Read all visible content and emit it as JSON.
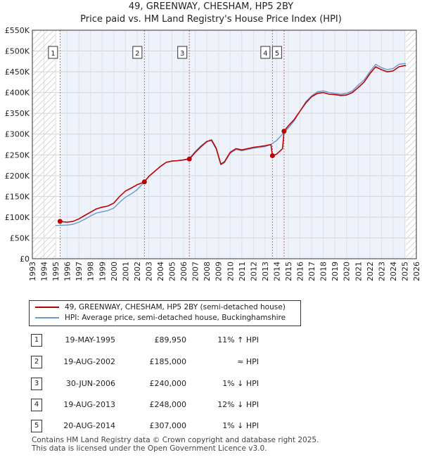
{
  "title": "49, GREENWAY, CHESHAM, HP5 2BY",
  "subtitle": "Price paid vs. HM Land Registry's House Price Index (HPI)",
  "chart_data": {
    "type": "line",
    "title": "49, GREENWAY, CHESHAM, HP5 2BY",
    "subtitle": "Price paid vs. HM Land Registry's House Price Index (HPI)",
    "xlim": [
      1993,
      2026
    ],
    "ylim": [
      0,
      550000
    ],
    "x_ticks": [
      "1993",
      "1994",
      "1995",
      "1996",
      "1997",
      "1998",
      "1999",
      "2000",
      "2001",
      "2002",
      "2003",
      "2004",
      "2005",
      "2006",
      "2007",
      "2008",
      "2009",
      "2010",
      "2011",
      "2012",
      "2013",
      "2014",
      "2015",
      "2016",
      "2017",
      "2018",
      "2019",
      "2020",
      "2021",
      "2022",
      "2023",
      "2024",
      "2025",
      "2026"
    ],
    "y_ticks": [
      {
        "value": 0,
        "label": "£0"
      },
      {
        "value": 50000,
        "label": "£50K"
      },
      {
        "value": 100000,
        "label": "£100K"
      },
      {
        "value": 150000,
        "label": "£150K"
      },
      {
        "value": 200000,
        "label": "£200K"
      },
      {
        "value": 250000,
        "label": "£250K"
      },
      {
        "value": 300000,
        "label": "£300K"
      },
      {
        "value": 350000,
        "label": "£350K"
      },
      {
        "value": 400000,
        "label": "£400K"
      },
      {
        "value": 450000,
        "label": "£450K"
      },
      {
        "value": 500000,
        "label": "£500K"
      },
      {
        "value": 550000,
        "label": "£550K"
      }
    ],
    "grid": true,
    "hatched_ranges": [
      [
        1993,
        1995.0
      ],
      [
        2025.1,
        2026
      ]
    ],
    "shaded_band": [
      1995.38,
      2025.1
    ],
    "series": [
      {
        "name": "49, GREENWAY, CHESHAM, HP5 2BY (semi-detached house)",
        "color": "#c00000",
        "points": [
          [
            1995.38,
            89950
          ],
          [
            1995.6,
            89000
          ],
          [
            1996.0,
            88000
          ],
          [
            1996.5,
            90000
          ],
          [
            1997.0,
            96000
          ],
          [
            1997.5,
            104000
          ],
          [
            1998.0,
            112000
          ],
          [
            1998.5,
            120000
          ],
          [
            1999.0,
            124000
          ],
          [
            1999.5,
            127000
          ],
          [
            2000.0,
            134000
          ],
          [
            2000.5,
            150000
          ],
          [
            2001.0,
            163000
          ],
          [
            2001.5,
            170000
          ],
          [
            2002.0,
            178000
          ],
          [
            2002.63,
            185000
          ],
          [
            2003.0,
            198000
          ],
          [
            2003.5,
            210000
          ],
          [
            2004.0,
            222000
          ],
          [
            2004.5,
            232000
          ],
          [
            2005.0,
            235000
          ],
          [
            2005.5,
            236000
          ],
          [
            2006.0,
            238000
          ],
          [
            2006.5,
            240000
          ],
          [
            2007.0,
            256000
          ],
          [
            2007.5,
            270000
          ],
          [
            2008.0,
            282000
          ],
          [
            2008.4,
            286000
          ],
          [
            2008.8,
            266000
          ],
          [
            2009.2,
            228000
          ],
          [
            2009.5,
            233000
          ],
          [
            2010.0,
            256000
          ],
          [
            2010.5,
            265000
          ],
          [
            2011.0,
            262000
          ],
          [
            2011.5,
            265000
          ],
          [
            2012.0,
            268000
          ],
          [
            2012.5,
            270000
          ],
          [
            2013.0,
            272000
          ],
          [
            2013.5,
            275000
          ],
          [
            2013.63,
            248000
          ],
          [
            2014.0,
            252000
          ],
          [
            2014.5,
            265000
          ],
          [
            2014.63,
            307000
          ],
          [
            2015.0,
            320000
          ],
          [
            2015.5,
            335000
          ],
          [
            2016.0,
            355000
          ],
          [
            2016.5,
            375000
          ],
          [
            2017.0,
            390000
          ],
          [
            2017.5,
            398000
          ],
          [
            2018.0,
            400000
          ],
          [
            2018.5,
            396000
          ],
          [
            2019.0,
            395000
          ],
          [
            2019.5,
            393000
          ],
          [
            2020.0,
            394000
          ],
          [
            2020.5,
            400000
          ],
          [
            2021.0,
            412000
          ],
          [
            2021.5,
            425000
          ],
          [
            2022.0,
            445000
          ],
          [
            2022.5,
            462000
          ],
          [
            2023.0,
            455000
          ],
          [
            2023.5,
            450000
          ],
          [
            2024.0,
            452000
          ],
          [
            2024.5,
            462000
          ],
          [
            2025.0,
            465000
          ],
          [
            2025.1,
            464000
          ]
        ]
      },
      {
        "name": "HPI: Average price, semi-detached house, Buckinghamshire",
        "color": "#6699cc",
        "points": [
          [
            1995.0,
            80000
          ],
          [
            1995.5,
            80500
          ],
          [
            1996.0,
            81000
          ],
          [
            1996.5,
            83000
          ],
          [
            1997.0,
            88000
          ],
          [
            1997.5,
            95000
          ],
          [
            1998.0,
            103000
          ],
          [
            1998.5,
            110000
          ],
          [
            1999.0,
            113000
          ],
          [
            1999.5,
            116000
          ],
          [
            2000.0,
            122000
          ],
          [
            2000.5,
            136000
          ],
          [
            2001.0,
            148000
          ],
          [
            2001.5,
            156000
          ],
          [
            2002.0,
            166000
          ],
          [
            2002.63,
            185000
          ],
          [
            2003.0,
            198000
          ],
          [
            2003.5,
            210000
          ],
          [
            2004.0,
            222000
          ],
          [
            2004.5,
            232000
          ],
          [
            2005.0,
            235000
          ],
          [
            2005.5,
            236000
          ],
          [
            2006.0,
            238000
          ],
          [
            2006.5,
            242000
          ],
          [
            2007.0,
            258000
          ],
          [
            2007.5,
            272000
          ],
          [
            2008.0,
            283000
          ],
          [
            2008.4,
            284000
          ],
          [
            2008.8,
            264000
          ],
          [
            2009.2,
            226000
          ],
          [
            2009.5,
            231000
          ],
          [
            2010.0,
            254000
          ],
          [
            2010.5,
            263000
          ],
          [
            2011.0,
            260000
          ],
          [
            2011.5,
            263000
          ],
          [
            2012.0,
            266000
          ],
          [
            2012.5,
            268000
          ],
          [
            2013.0,
            270000
          ],
          [
            2013.5,
            275000
          ],
          [
            2014.0,
            285000
          ],
          [
            2014.5,
            300000
          ],
          [
            2015.0,
            315000
          ],
          [
            2015.5,
            332000
          ],
          [
            2016.0,
            355000
          ],
          [
            2016.5,
            378000
          ],
          [
            2017.0,
            392000
          ],
          [
            2017.5,
            402000
          ],
          [
            2018.0,
            404000
          ],
          [
            2018.5,
            400000
          ],
          [
            2019.0,
            398000
          ],
          [
            2019.5,
            396000
          ],
          [
            2020.0,
            398000
          ],
          [
            2020.5,
            404000
          ],
          [
            2021.0,
            418000
          ],
          [
            2021.5,
            430000
          ],
          [
            2022.0,
            450000
          ],
          [
            2022.5,
            468000
          ],
          [
            2023.0,
            460000
          ],
          [
            2023.5,
            455000
          ],
          [
            2024.0,
            458000
          ],
          [
            2024.5,
            468000
          ],
          [
            2025.0,
            470000
          ],
          [
            2025.1,
            469000
          ]
        ]
      }
    ],
    "sales": [
      {
        "label": "1",
        "x": 1995.38,
        "y": 89950
      },
      {
        "label": "2",
        "x": 2002.63,
        "y": 185000
      },
      {
        "label": "3",
        "x": 2006.49,
        "y": 240000
      },
      {
        "label": "4",
        "x": 2013.63,
        "y": 248000
      },
      {
        "label": "5",
        "x": 2014.63,
        "y": 307000
      }
    ]
  },
  "legend": {
    "property_label": "49, GREENWAY, CHESHAM, HP5 2BY (semi-detached house)",
    "hpi_label": "HPI: Average price, semi-detached house, Buckinghamshire"
  },
  "transactions": [
    {
      "num": "1",
      "date": "19-MAY-1995",
      "price": "£89,950",
      "hpi": "11% ↑ HPI"
    },
    {
      "num": "2",
      "date": "19-AUG-2002",
      "price": "£185,000",
      "hpi": "≈ HPI"
    },
    {
      "num": "3",
      "date": "30-JUN-2006",
      "price": "£240,000",
      "hpi": "1% ↓ HPI"
    },
    {
      "num": "4",
      "date": "19-AUG-2013",
      "price": "£248,000",
      "hpi": "12% ↓ HPI"
    },
    {
      "num": "5",
      "date": "20-AUG-2014",
      "price": "£307,000",
      "hpi": "1% ↓ HPI"
    }
  ],
  "footer": {
    "line1": "Contains HM Land Registry data © Crown copyright and database right 2025.",
    "line2": "This data is licensed under the Open Government Licence v3.0."
  }
}
